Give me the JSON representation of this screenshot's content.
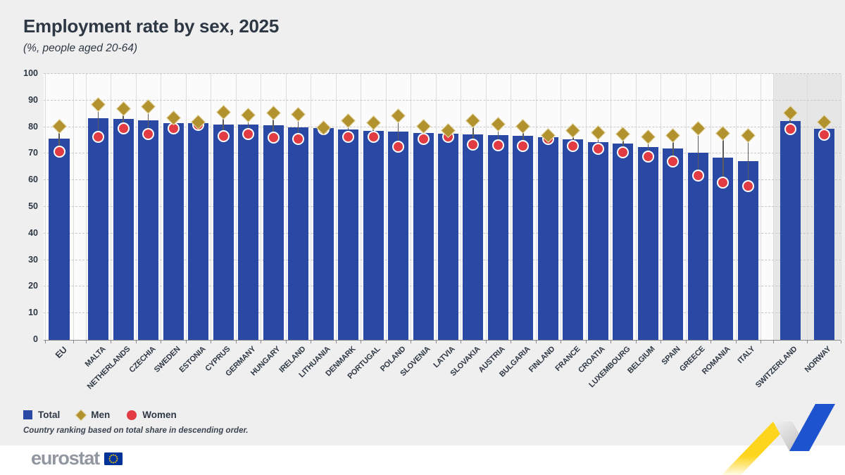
{
  "title": "Employment rate by sex, 2025",
  "subtitle": "(%, people aged 20-64)",
  "legend": {
    "total": "Total",
    "men": "Men",
    "women": "Women"
  },
  "footnote": "Country ranking based on total share in descending order.",
  "brand": {
    "logo_text": "eurostat"
  },
  "colors": {
    "bar": "#2a49a5",
    "men": "#b2922f",
    "men_outline": "#ece2bb",
    "women": "#e23b44",
    "women_outline": "#ffffff",
    "connector": "#5c5c5c",
    "grid": "#c7c7c7",
    "vgrid": "#dcdcdc",
    "baseline": "#8a8a8a",
    "plot_bg": "#fbfbfb",
    "highlight_band": "#e6e6e7",
    "text": "#2e3844",
    "accent_yellow": "#fdd51c",
    "accent_blue": "#1e53cf",
    "logo_grey": "#9196a0"
  },
  "chart_data": {
    "type": "bar",
    "title": "Employment rate by sex, 2025",
    "subtitle": "(%, people aged 20-64)",
    "xlabel": "",
    "ylabel": "%",
    "ylim": [
      0,
      100
    ],
    "yticks": [
      0,
      10,
      20,
      30,
      40,
      50,
      60,
      70,
      80,
      90,
      100
    ],
    "grid": "horizontal-dashed",
    "legend_position": "bottom-left",
    "categories": [
      "EU",
      "MALTA",
      "NETHERLANDS",
      "CZECHIA",
      "SWEDEN",
      "ESTONIA",
      "CYPRUS",
      "GERMANY",
      "HUNGARY",
      "IRELAND",
      "LITHUANIA",
      "DENMARK",
      "PORTUGAL",
      "POLAND",
      "SLOVENIA",
      "LATVIA",
      "SLOVAKIA",
      "AUSTRIA",
      "BULGARIA",
      "FINLAND",
      "FRANCE",
      "CROATIA",
      "LUXEMBOURG",
      "BELGIUM",
      "SPAIN",
      "GREECE",
      "ROMANIA",
      "ITALY",
      "SWITZERLAND",
      "NORWAY"
    ],
    "series": [
      {
        "name": "Total",
        "style": "bar",
        "values": [
          75.7,
          83.4,
          83.2,
          82.5,
          81.6,
          81.4,
          81.0,
          80.9,
          80.7,
          79.8,
          79.5,
          79.0,
          78.7,
          78.3,
          77.8,
          77.5,
          77.3,
          76.9,
          76.7,
          76.3,
          75.3,
          74.4,
          73.8,
          72.4,
          71.9,
          70.5,
          68.4,
          67.1,
          82.2,
          79.3
        ]
      },
      {
        "name": "Men",
        "style": "diamond",
        "values": [
          80.3,
          88.5,
          86.8,
          87.8,
          83.5,
          82.0,
          85.7,
          84.5,
          85.3,
          84.8,
          79.8,
          82.4,
          81.7,
          84.2,
          80.3,
          78.8,
          82.3,
          81.0,
          80.2,
          76.8,
          78.8,
          77.8,
          77.5,
          76.3,
          76.8,
          79.4,
          77.7,
          76.8,
          85.2,
          81.9
        ]
      },
      {
        "name": "Women",
        "style": "circle",
        "values": [
          70.8,
          76.4,
          79.4,
          77.5,
          79.4,
          80.7,
          76.5,
          77.3,
          76.0,
          75.5,
          79.2,
          76.4,
          76.2,
          72.6,
          75.5,
          76.4,
          73.5,
          73.2,
          72.8,
          75.6,
          72.9,
          71.8,
          70.4,
          69.0,
          67.1,
          61.9,
          59.0,
          57.7,
          79.3,
          77.1
        ]
      }
    ],
    "separators_after": [
      "EU",
      "ITALY"
    ],
    "highlighted_categories": [
      "SWITZERLAND",
      "NORWAY"
    ],
    "note": "Country ranking based on total share in descending order."
  }
}
